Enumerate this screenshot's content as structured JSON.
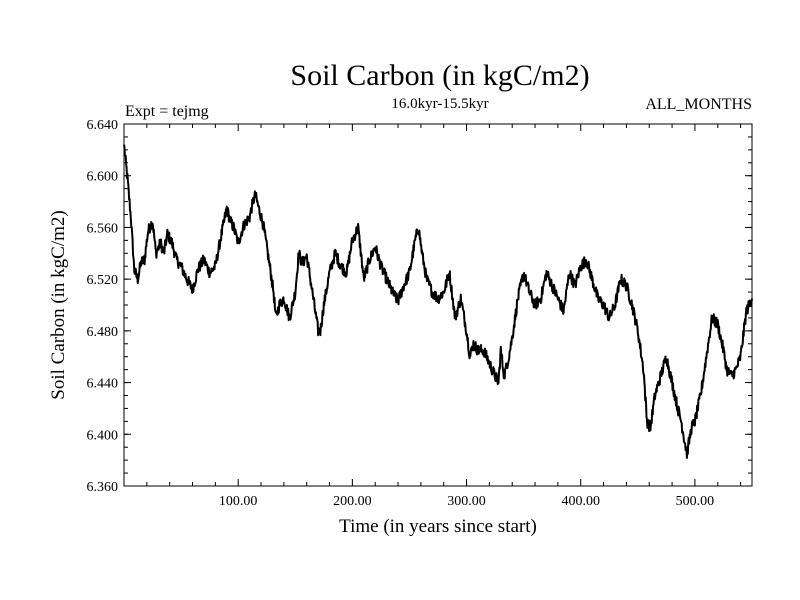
{
  "chart_data": {
    "type": "line",
    "title": "Soil Carbon (in kgC/m2)",
    "subtitle": "16.0kyr-15.5kyr",
    "left_label": "Expt = tejmg",
    "right_label": "ALL_MONTHS",
    "xlabel": "Time (in years since start)",
    "ylabel": "Soil Carbon (in kgC/m2)",
    "xlim": [
      0,
      550
    ],
    "ylim": [
      6.36,
      6.64
    ],
    "x_ticks": [
      100,
      200,
      300,
      400,
      500
    ],
    "x_tick_labels": [
      "100.00",
      "200.00",
      "300.00",
      "400.00",
      "500.00"
    ],
    "y_ticks": [
      6.36,
      6.4,
      6.44,
      6.48,
      6.52,
      6.56,
      6.6,
      6.64
    ],
    "y_tick_labels": [
      "6.360",
      "6.400",
      "6.440",
      "6.480",
      "6.520",
      "6.560",
      "6.600",
      "6.640"
    ],
    "grid": false,
    "series": [
      {
        "name": "Soil Carbon",
        "x": [
          0,
          3,
          6,
          9,
          12,
          15,
          18,
          21,
          25,
          28,
          32,
          35,
          38,
          42,
          46,
          50,
          55,
          60,
          65,
          70,
          75,
          80,
          85,
          88,
          90,
          93,
          96,
          100,
          105,
          110,
          113,
          115,
          118,
          122,
          125,
          128,
          131,
          133,
          136,
          140,
          145,
          150,
          153,
          156,
          160,
          165,
          170,
          172,
          175,
          180,
          185,
          190,
          195,
          200,
          205,
          210,
          215,
          220,
          225,
          230,
          235,
          240,
          245,
          250,
          255,
          258,
          261,
          265,
          270,
          275,
          280,
          285,
          290,
          295,
          300,
          303,
          306,
          310,
          315,
          320,
          325,
          328,
          330,
          333,
          337,
          340,
          345,
          350,
          355,
          360,
          365,
          370,
          375,
          380,
          385,
          390,
          395,
          400,
          405,
          410,
          415,
          420,
          425,
          430,
          435,
          440,
          445,
          450,
          455,
          458,
          461,
          465,
          470,
          475,
          480,
          485,
          488,
          490,
          493,
          497,
          500,
          505,
          510,
          515,
          520,
          525,
          528,
          532,
          536,
          540,
          545,
          550
        ],
        "values": [
          6.624,
          6.598,
          6.568,
          6.527,
          6.52,
          6.533,
          6.535,
          6.557,
          6.565,
          6.54,
          6.548,
          6.54,
          6.555,
          6.548,
          6.535,
          6.53,
          6.52,
          6.512,
          6.528,
          6.535,
          6.525,
          6.53,
          6.553,
          6.566,
          6.575,
          6.565,
          6.56,
          6.548,
          6.562,
          6.568,
          6.58,
          6.585,
          6.575,
          6.562,
          6.545,
          6.528,
          6.51,
          6.49,
          6.5,
          6.505,
          6.49,
          6.51,
          6.54,
          6.532,
          6.538,
          6.51,
          6.48,
          6.48,
          6.5,
          6.525,
          6.54,
          6.53,
          6.525,
          6.55,
          6.56,
          6.52,
          6.535,
          6.545,
          6.53,
          6.52,
          6.51,
          6.503,
          6.515,
          6.525,
          6.55,
          6.56,
          6.54,
          6.52,
          6.51,
          6.505,
          6.51,
          6.525,
          6.49,
          6.505,
          6.48,
          6.46,
          6.47,
          6.465,
          6.465,
          6.455,
          6.445,
          6.44,
          6.465,
          6.445,
          6.46,
          6.475,
          6.505,
          6.525,
          6.51,
          6.5,
          6.505,
          6.525,
          6.515,
          6.505,
          6.495,
          6.525,
          6.515,
          6.53,
          6.535,
          6.52,
          6.505,
          6.5,
          6.49,
          6.5,
          6.52,
          6.515,
          6.5,
          6.48,
          6.45,
          6.41,
          6.405,
          6.43,
          6.445,
          6.46,
          6.44,
          6.42,
          6.41,
          6.4,
          6.385,
          6.405,
          6.41,
          6.43,
          6.46,
          6.49,
          6.485,
          6.465,
          6.45,
          6.445,
          6.45,
          6.46,
          6.495,
          6.505
        ]
      }
    ]
  }
}
